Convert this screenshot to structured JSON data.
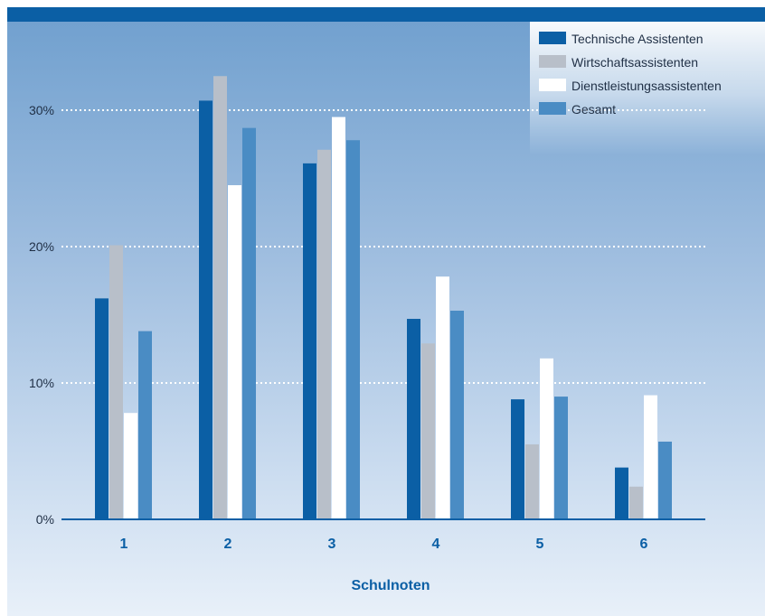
{
  "chart_data": {
    "type": "bar",
    "xlabel": "Schulnoten",
    "ylabel": "",
    "ylim": [
      0,
      34
    ],
    "yticks": [
      0,
      10,
      20,
      30
    ],
    "ytick_labels": [
      "0%",
      "10%",
      "20%",
      "30%"
    ],
    "grid": "horizontal dotted",
    "legend_position": "top-right",
    "categories": [
      "1",
      "2",
      "3",
      "4",
      "5",
      "6"
    ],
    "series": [
      {
        "name": "Technische Assistenten",
        "color": "#0b5fa5",
        "values": [
          16.2,
          30.7,
          26.1,
          14.7,
          8.8,
          3.8
        ]
      },
      {
        "name": "Wirtschaftsassistenten",
        "color": "#b8bfc9",
        "values": [
          20.1,
          32.5,
          27.1,
          12.9,
          5.5,
          2.4
        ]
      },
      {
        "name": "Dienstleistungsassistenten",
        "color": "#ffffff",
        "values": [
          7.8,
          24.5,
          29.5,
          17.8,
          11.8,
          9.1
        ]
      },
      {
        "name": "Gesamt",
        "color": "#4a8cc4",
        "values": [
          13.8,
          28.7,
          27.8,
          15.3,
          9.0,
          5.7
        ]
      }
    ]
  }
}
